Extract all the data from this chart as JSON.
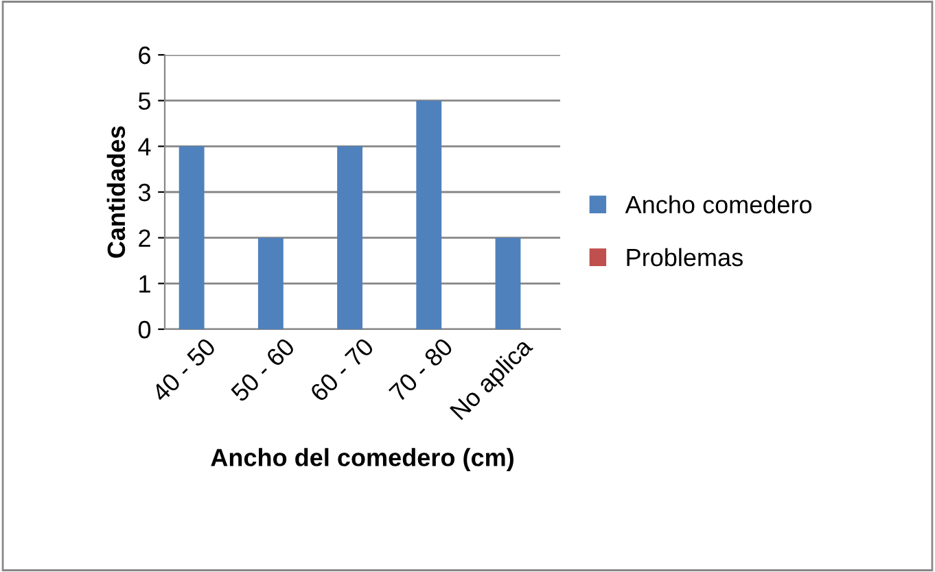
{
  "chart_data": {
    "type": "bar",
    "xlabel": "Ancho del comedero (cm)",
    "ylabel": "Cantidades",
    "categories": [
      "40 - 50",
      "50 - 60",
      "60 - 70",
      "70 - 80",
      "No aplica"
    ],
    "series": [
      {
        "name": "Ancho comedero",
        "color": "#4f81bd",
        "values": [
          4,
          2,
          4,
          5,
          2
        ]
      },
      {
        "name": "Problemas",
        "color": "#c0504d",
        "values": [
          null,
          null,
          null,
          null,
          null
        ]
      }
    ],
    "ylim": [
      0,
      6
    ],
    "yticks": [
      0,
      1,
      2,
      3,
      4,
      5,
      6
    ],
    "grid": "y",
    "legend": "right"
  }
}
